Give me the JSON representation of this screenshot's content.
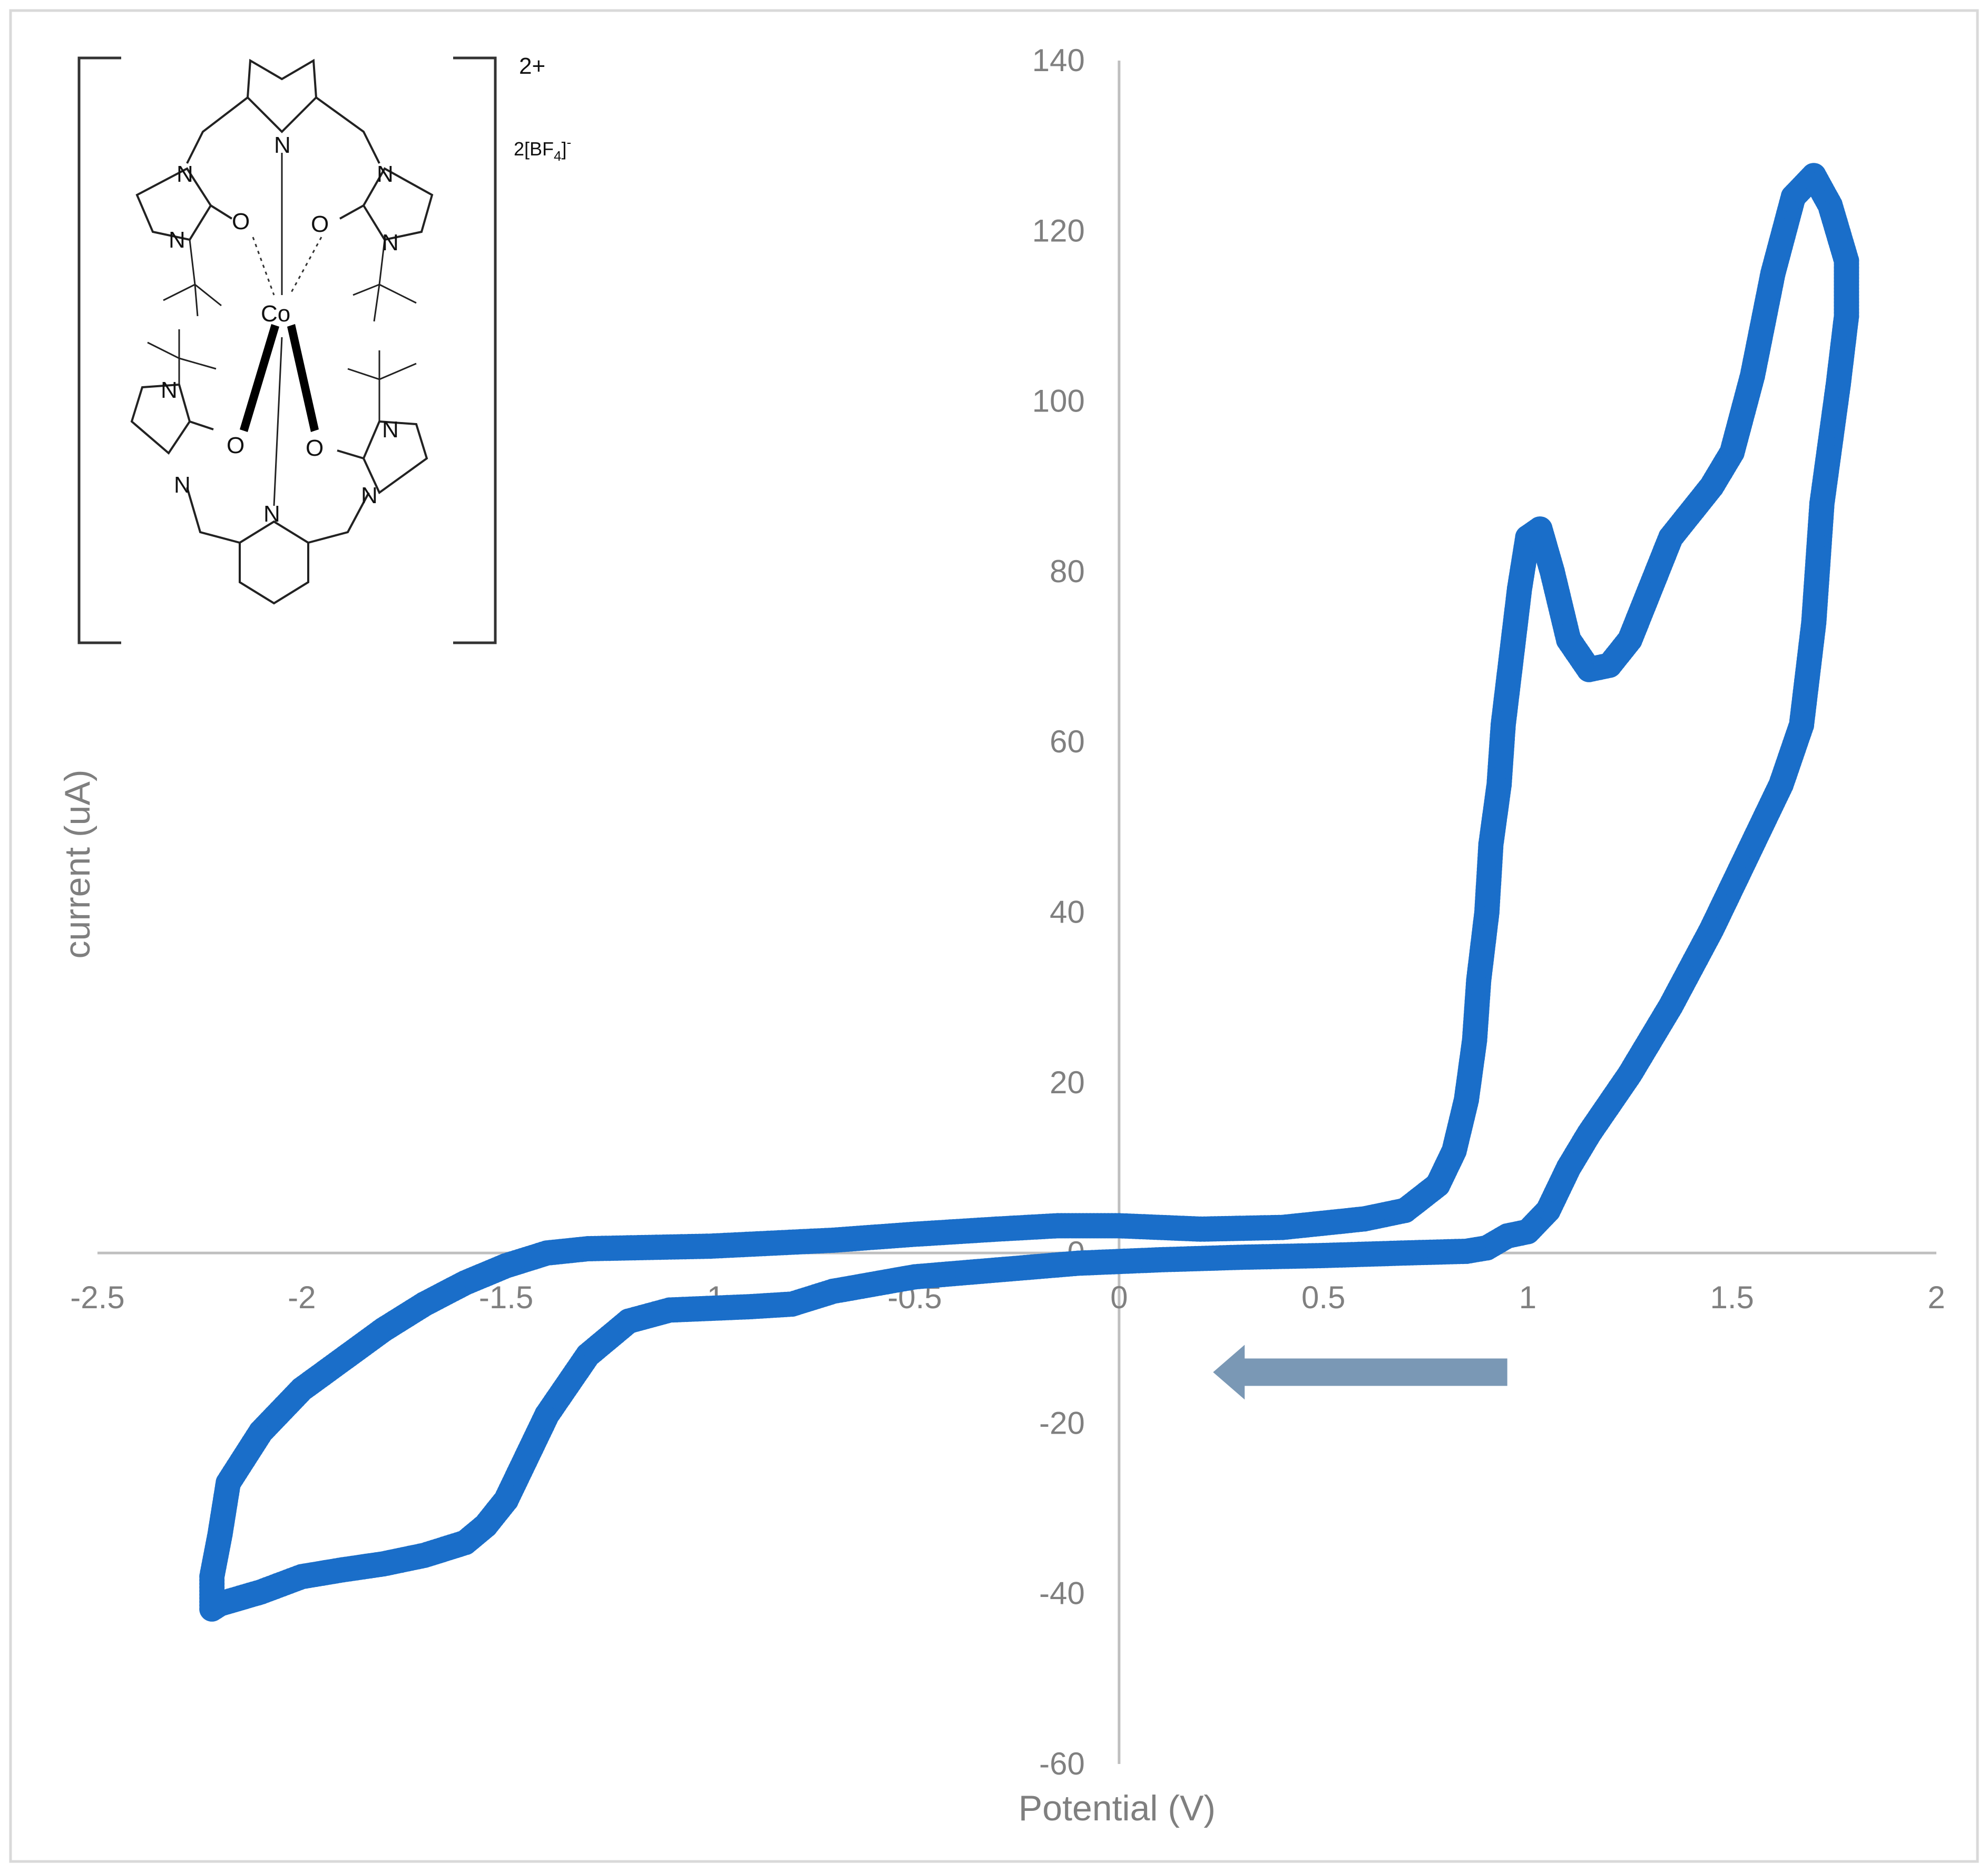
{
  "chart_data": {
    "type": "scatter",
    "title": "",
    "xlabel": "Potential (V)",
    "ylabel": "current (uA)",
    "xlim": [
      -2.5,
      2
    ],
    "ylim": [
      -60,
      140
    ],
    "x_ticks": [
      -2.5,
      -2,
      -1.5,
      -1,
      -0.5,
      0,
      0.5,
      1,
      1.5,
      2
    ],
    "x_tick_labels": [
      "-2.5",
      "-2",
      "-1.5",
      "-1",
      "-0.5",
      "0",
      "0.5",
      "1",
      "1.5",
      "2"
    ],
    "y_ticks": [
      -60,
      -40,
      -20,
      0,
      20,
      40,
      60,
      80,
      100,
      120,
      140
    ],
    "y_tick_labels": [
      "-60",
      "-40",
      "-20",
      "0",
      "20",
      "40",
      "60",
      "80",
      "100",
      "120",
      "140"
    ],
    "grid": false,
    "legend": "none",
    "series": [
      {
        "color": "#1a6ec9",
        "points": [
          [
            0.95,
            2
          ],
          [
            0.9,
            0.6
          ],
          [
            0.85,
            0.2
          ],
          [
            0.7,
            0
          ],
          [
            0.5,
            -0.3
          ],
          [
            0.3,
            -0.5
          ],
          [
            0.1,
            -0.8
          ],
          [
            -0.1,
            -1.2
          ],
          [
            -0.3,
            -2
          ],
          [
            -0.5,
            -2.8
          ],
          [
            -0.7,
            -4.5
          ],
          [
            -0.8,
            -6
          ],
          [
            -0.9,
            -6.3
          ],
          [
            -1.0,
            -6.5
          ],
          [
            -1.1,
            -6.7
          ],
          [
            -1.2,
            -8
          ],
          [
            -1.3,
            -12
          ],
          [
            -1.4,
            -19
          ],
          [
            -1.5,
            -29
          ],
          [
            -1.55,
            -32
          ],
          [
            -1.6,
            -34
          ],
          [
            -1.7,
            -35.5
          ],
          [
            -1.8,
            -36.5
          ],
          [
            -1.9,
            -37.2
          ],
          [
            -2.0,
            -38
          ],
          [
            -2.1,
            -39.8
          ],
          [
            -2.15,
            -40.5
          ],
          [
            -2.2,
            -41.2
          ],
          [
            -2.22,
            -41.8
          ],
          [
            -2.22,
            -38
          ],
          [
            -2.2,
            -33
          ],
          [
            -2.18,
            -27
          ],
          [
            -2.1,
            -21
          ],
          [
            -2.0,
            -16
          ],
          [
            -1.9,
            -12.5
          ],
          [
            -1.8,
            -9
          ],
          [
            -1.7,
            -6
          ],
          [
            -1.6,
            -3.5
          ],
          [
            -1.5,
            -1.5
          ],
          [
            -1.4,
            0
          ],
          [
            -1.3,
            0.5
          ],
          [
            -1.0,
            0.8
          ],
          [
            -0.7,
            1.5
          ],
          [
            -0.5,
            2.2
          ],
          [
            -0.3,
            2.8
          ],
          [
            -0.15,
            3.2
          ],
          [
            0.0,
            3.2
          ],
          [
            0.2,
            2.8
          ],
          [
            0.4,
            3.0
          ],
          [
            0.6,
            4.0
          ],
          [
            0.7,
            5.0
          ],
          [
            0.78,
            8
          ],
          [
            0.82,
            12
          ],
          [
            0.85,
            18
          ],
          [
            0.87,
            25
          ],
          [
            0.88,
            32
          ],
          [
            0.9,
            40
          ],
          [
            0.91,
            48
          ],
          [
            0.93,
            55
          ],
          [
            0.94,
            62
          ],
          [
            0.96,
            70
          ],
          [
            0.98,
            78
          ],
          [
            1.0,
            84
          ],
          [
            1.03,
            85
          ],
          [
            1.06,
            80
          ],
          [
            1.1,
            72
          ],
          [
            1.15,
            68.5
          ],
          [
            1.2,
            69
          ],
          [
            1.25,
            72
          ],
          [
            1.3,
            78
          ],
          [
            1.35,
            84
          ],
          [
            1.4,
            87
          ],
          [
            1.45,
            90
          ],
          [
            1.5,
            94
          ],
          [
            1.55,
            103
          ],
          [
            1.6,
            115
          ],
          [
            1.65,
            124
          ],
          [
            1.7,
            126.5
          ],
          [
            1.74,
            123
          ],
          [
            1.78,
            116.5
          ],
          [
            1.78,
            110
          ],
          [
            1.76,
            102
          ],
          [
            1.72,
            88
          ],
          [
            1.7,
            74
          ],
          [
            1.67,
            62
          ],
          [
            1.62,
            55
          ],
          [
            1.55,
            48
          ],
          [
            1.45,
            38
          ],
          [
            1.35,
            29
          ],
          [
            1.25,
            21
          ],
          [
            1.15,
            14
          ],
          [
            1.1,
            10
          ],
          [
            1.05,
            5
          ],
          [
            1.0,
            2.5
          ],
          [
            0.95,
            2
          ]
        ]
      }
    ],
    "annotations": [
      {
        "type": "arrow",
        "direction": "left",
        "from": [
          0.95,
          -14
        ],
        "to": [
          0.23,
          -14
        ]
      }
    ]
  },
  "inset": {
    "superscript_charge": "2+",
    "counterion_prefix": "2[BF",
    "counterion_subscript": "4",
    "counterion_suffix": "]",
    "counterion_charge": "-",
    "metal_label": "Co",
    "atom_N": "N",
    "atom_O": "O"
  }
}
